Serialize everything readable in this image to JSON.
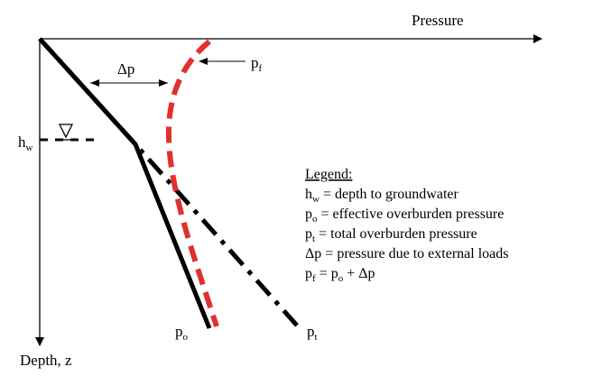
{
  "axes": {
    "x_label": "Pressure",
    "y_label": "Depth, z"
  },
  "labels": {
    "delta_p": "Δp",
    "hw": {
      "base": "h",
      "sub": "w"
    },
    "pf": {
      "base": "p",
      "sub": "f"
    },
    "po": {
      "base": "p",
      "sub": "o"
    },
    "pt": {
      "base": "p",
      "sub": "t"
    }
  },
  "legend": {
    "title": "Legend:",
    "items": [
      {
        "sym": "h",
        "sub": "w",
        "text": " = depth to groundwater"
      },
      {
        "sym": "p",
        "sub": "o",
        "text": " = effective overburden pressure"
      },
      {
        "sym": "p",
        "sub": "t",
        "text": " = total overburden pressure"
      },
      {
        "sym": "Δp",
        "sub": "",
        "text": " = pressure due to external loads"
      },
      {
        "sym": "p",
        "sub": "f",
        "text": " = p",
        "tail_sub": "o",
        "tail": " + Δp"
      }
    ]
  },
  "colors": {
    "effective_line": "#000000",
    "total_line": "#000000",
    "final_line": "#e03030",
    "axes": "#000000"
  }
}
